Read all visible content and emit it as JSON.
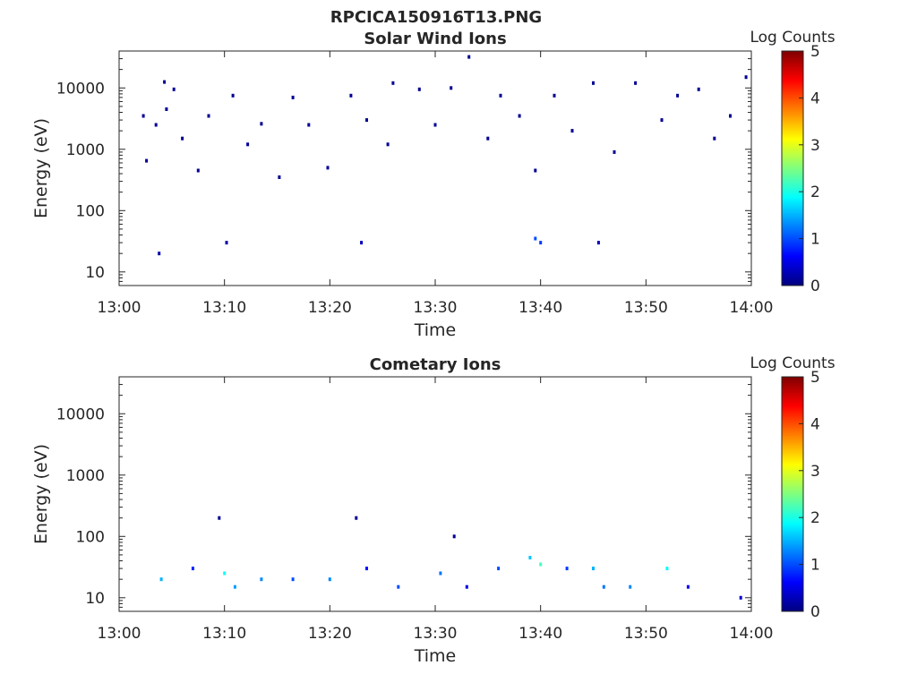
{
  "page_title": "RPCICA150916T13.PNG",
  "colorscale": [
    "#00007f",
    "#0000ff",
    "#007fff",
    "#00ffff",
    "#7fff7f",
    "#ffff00",
    "#ff7f00",
    "#ff0000",
    "#7f0000"
  ],
  "chart_data": [
    {
      "type": "heatmap",
      "title": "Solar Wind Ions",
      "xlabel": "Time",
      "ylabel": "Energy (eV)",
      "x_range": [
        "13:00",
        "14:00"
      ],
      "x_ticks": [
        "13:00",
        "13:10",
        "13:20",
        "13:30",
        "13:40",
        "13:50",
        "14:00"
      ],
      "y_scale": "log",
      "ylim": [
        6,
        40000
      ],
      "y_ticks": [
        "10",
        "100",
        "1000",
        "10000"
      ],
      "colorbar": {
        "label": "Log Counts",
        "range": [
          0,
          5
        ],
        "ticks": [
          "0",
          "1",
          "2",
          "3",
          "4",
          "5"
        ]
      },
      "points": [
        {
          "x": "13:02.3",
          "y": 3500,
          "z": 0.1
        },
        {
          "x": "13:02.6",
          "y": 650,
          "z": 0.1
        },
        {
          "x": "13:03.5",
          "y": 2500,
          "z": 0.1
        },
        {
          "x": "13:04.3",
          "y": 12500,
          "z": 0.1
        },
        {
          "x": "13:04.5",
          "y": 4500,
          "z": 0.1
        },
        {
          "x": "13:05.2",
          "y": 9500,
          "z": 0.1
        },
        {
          "x": "13:06.0",
          "y": 1500,
          "z": 0.1
        },
        {
          "x": "13:07.5",
          "y": 450,
          "z": 0.1
        },
        {
          "x": "13:08.5",
          "y": 3500,
          "z": 0.1
        },
        {
          "x": "13:10.8",
          "y": 7500,
          "z": 0.1
        },
        {
          "x": "13:12.2",
          "y": 1200,
          "z": 0.1
        },
        {
          "x": "13:13.5",
          "y": 2600,
          "z": 0.1
        },
        {
          "x": "13:15.2",
          "y": 350,
          "z": 0.1
        },
        {
          "x": "13:16.5",
          "y": 7000,
          "z": 0.1
        },
        {
          "x": "13:18.0",
          "y": 2500,
          "z": 0.1
        },
        {
          "x": "13:19.8",
          "y": 500,
          "z": 0.1
        },
        {
          "x": "13:22.0",
          "y": 7500,
          "z": 0.1
        },
        {
          "x": "13:23.5",
          "y": 3000,
          "z": 0.1
        },
        {
          "x": "13:25.5",
          "y": 1200,
          "z": 0.1
        },
        {
          "x": "13:26.0",
          "y": 12000,
          "z": 0.1
        },
        {
          "x": "13:28.5",
          "y": 9500,
          "z": 0.1
        },
        {
          "x": "13:30.0",
          "y": 2500,
          "z": 0.1
        },
        {
          "x": "13:31.5",
          "y": 10000,
          "z": 0.1
        },
        {
          "x": "13:33.2",
          "y": 32000,
          "z": 0.1
        },
        {
          "x": "13:35.0",
          "y": 1500,
          "z": 0.1
        },
        {
          "x": "13:36.2",
          "y": 7500,
          "z": 0.1
        },
        {
          "x": "13:38.0",
          "y": 3500,
          "z": 0.1
        },
        {
          "x": "13:39.5",
          "y": 450,
          "z": 0.1
        },
        {
          "x": "13:41.3",
          "y": 7500,
          "z": 0.1
        },
        {
          "x": "13:43.0",
          "y": 2000,
          "z": 0.1
        },
        {
          "x": "13:45.0",
          "y": 12000,
          "z": 0.1
        },
        {
          "x": "13:47.0",
          "y": 900,
          "z": 0.1
        },
        {
          "x": "13:49.0",
          "y": 12000,
          "z": 0.1
        },
        {
          "x": "13:51.5",
          "y": 3000,
          "z": 0.1
        },
        {
          "x": "13:53.0",
          "y": 7500,
          "z": 0.1
        },
        {
          "x": "13:55.0",
          "y": 9500,
          "z": 0.1
        },
        {
          "x": "13:56.5",
          "y": 1500,
          "z": 0.1
        },
        {
          "x": "13:58.0",
          "y": 3500,
          "z": 0.1
        },
        {
          "x": "13:59.5",
          "y": 15000,
          "z": 0.1
        },
        {
          "x": "13:39.5",
          "y": 35,
          "z": 1.0
        },
        {
          "x": "13:40.0",
          "y": 30,
          "z": 0.9
        },
        {
          "x": "13:23.0",
          "y": 30,
          "z": 0.3
        },
        {
          "x": "13:03.8",
          "y": 20,
          "z": 0.2
        },
        {
          "x": "13:10.2",
          "y": 30,
          "z": 0.2
        },
        {
          "x": "13:45.5",
          "y": 30,
          "z": 0.3
        }
      ]
    },
    {
      "type": "heatmap",
      "title": "Cometary Ions",
      "xlabel": "Time",
      "ylabel": "Energy (eV)",
      "x_range": [
        "13:00",
        "14:00"
      ],
      "x_ticks": [
        "13:00",
        "13:10",
        "13:20",
        "13:30",
        "13:40",
        "13:50",
        "14:00"
      ],
      "y_scale": "log",
      "ylim": [
        6,
        40000
      ],
      "y_ticks": [
        "10",
        "100",
        "1000",
        "10000"
      ],
      "colorbar": {
        "label": "Log Counts",
        "range": [
          0,
          5
        ],
        "ticks": [
          "0",
          "1",
          "2",
          "3",
          "4",
          "5"
        ]
      },
      "points": [
        {
          "x": "13:04.0",
          "y": 20,
          "z": 1.5
        },
        {
          "x": "13:07.0",
          "y": 30,
          "z": 0.8
        },
        {
          "x": "13:09.5",
          "y": 200,
          "z": 0.1
        },
        {
          "x": "13:10.0",
          "y": 25,
          "z": 1.9
        },
        {
          "x": "13:11.0",
          "y": 15,
          "z": 1.4
        },
        {
          "x": "13:13.5",
          "y": 20,
          "z": 1.3
        },
        {
          "x": "13:16.5",
          "y": 20,
          "z": 1.0
        },
        {
          "x": "13:20.0",
          "y": 20,
          "z": 1.3
        },
        {
          "x": "13:22.5",
          "y": 200,
          "z": 0.1
        },
        {
          "x": "13:23.5",
          "y": 30,
          "z": 0.7
        },
        {
          "x": "13:26.5",
          "y": 15,
          "z": 1.0
        },
        {
          "x": "13:30.5",
          "y": 25,
          "z": 1.2
        },
        {
          "x": "13:31.8",
          "y": 100,
          "z": 0.1
        },
        {
          "x": "13:33.0",
          "y": 15,
          "z": 0.5
        },
        {
          "x": "13:36.0",
          "y": 30,
          "z": 1.0
        },
        {
          "x": "13:39.0",
          "y": 45,
          "z": 1.6
        },
        {
          "x": "13:40.0",
          "y": 35,
          "z": 2.2
        },
        {
          "x": "13:42.5",
          "y": 30,
          "z": 0.9
        },
        {
          "x": "13:45.0",
          "y": 30,
          "z": 1.5
        },
        {
          "x": "13:46.0",
          "y": 15,
          "z": 1.2
        },
        {
          "x": "13:48.5",
          "y": 15,
          "z": 1.3
        },
        {
          "x": "13:52.0",
          "y": 30,
          "z": 1.9
        },
        {
          "x": "13:54.0",
          "y": 15,
          "z": 0.6
        },
        {
          "x": "13:59.0",
          "y": 10,
          "z": 0.4
        }
      ]
    }
  ]
}
